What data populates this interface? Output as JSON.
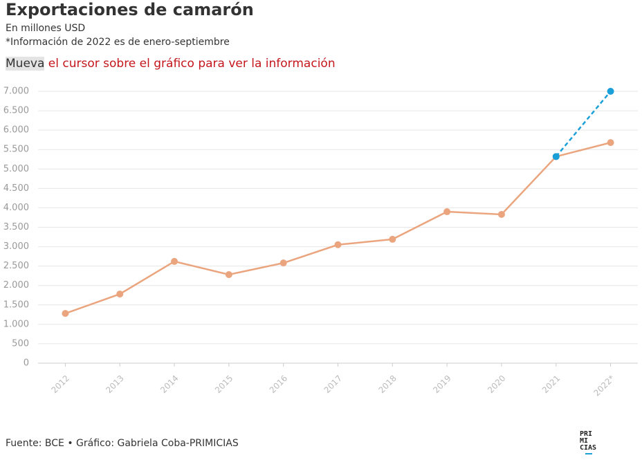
{
  "chart_data": {
    "type": "line",
    "title": "Exportaciones de camarón",
    "subtitle": "En millones USD",
    "note": "*Información de 2022 es de enero-septiembre",
    "instruction_highlight": "Mueva",
    "instruction": "el cursor sobre el gráfico para ver la información",
    "categories": [
      "2012",
      "2013",
      "2014",
      "2015",
      "2016",
      "2017",
      "2018",
      "2019",
      "2020",
      "2021",
      "2022*"
    ],
    "series": [
      {
        "color": "#eba57e",
        "style": "solid",
        "values": [
          1280,
          1780,
          2620,
          2280,
          2580,
          3050,
          3190,
          3900,
          3830,
          5320,
          5680
        ]
      },
      {
        "color": "#1a9fd9",
        "style": "dashed",
        "values": [
          null,
          null,
          null,
          null,
          null,
          null,
          null,
          null,
          null,
          5320,
          7000
        ]
      }
    ],
    "ylim": [
      0,
      7000
    ],
    "yticks": [
      0,
      500,
      {
        "value": 1000,
        "label": "1.000"
      },
      {
        "value": 1500,
        "label": "1.500"
      },
      {
        "value": 2000,
        "label": "2.000"
      },
      {
        "value": 2500,
        "label": "2.500"
      },
      {
        "value": 3000,
        "label": "3.000"
      },
      {
        "value": 3500,
        "label": "3.500"
      },
      {
        "value": 4000,
        "label": "4.000"
      },
      {
        "value": 4500,
        "label": "4.500"
      },
      {
        "value": 5000,
        "label": "5.000"
      },
      {
        "value": 5500,
        "label": "5.500"
      },
      {
        "value": 6000,
        "label": "6.000"
      },
      {
        "value": 6500,
        "label": "6.500"
      },
      {
        "value": 7000,
        "label": "7.000"
      }
    ],
    "grid": true,
    "source": "Fuente: BCE • Gráfico: Gabriela Coba-PRIMICIAS",
    "logo": [
      "PRI",
      "MI",
      "CIAS"
    ]
  }
}
